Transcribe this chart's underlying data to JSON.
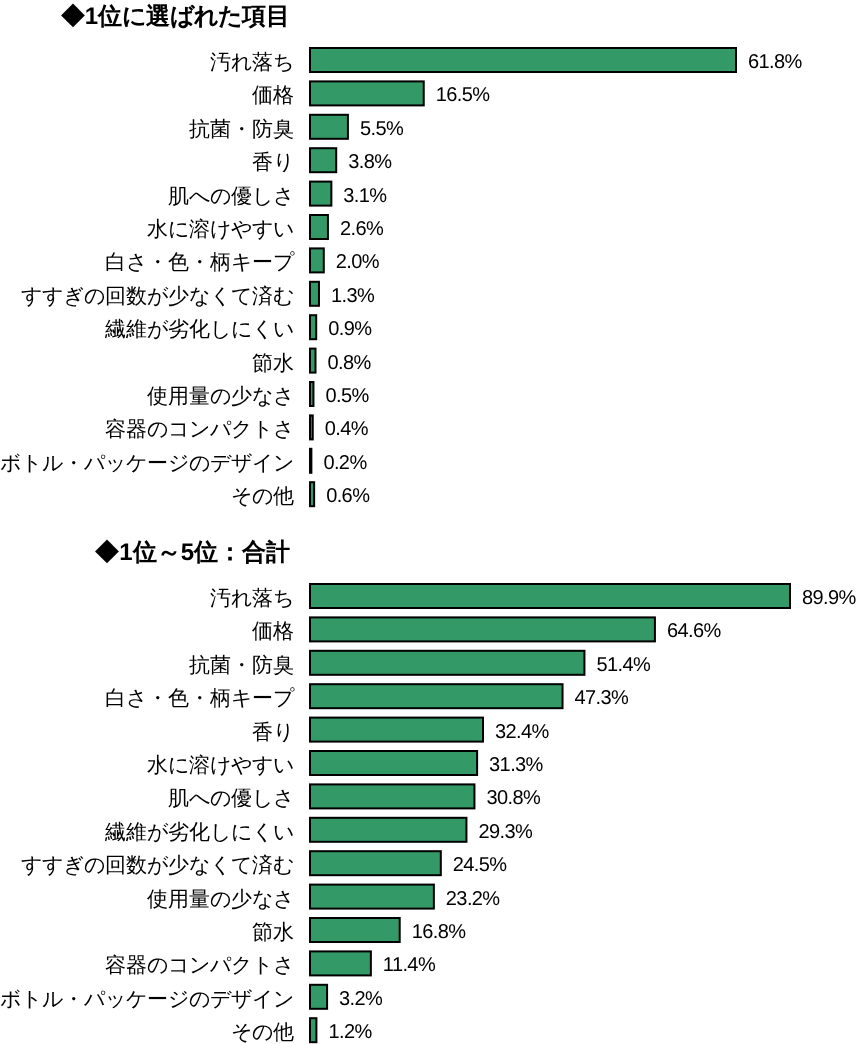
{
  "chart_data": [
    {
      "type": "bar",
      "orientation": "horizontal",
      "title": "◆1位に選ばれた項目",
      "color": "#339966",
      "categories": [
        "汚れ落ち",
        "価格",
        "抗菌・防臭",
        "香り",
        "肌への優しさ",
        "水に溶けやすい",
        "白さ・色・柄キープ",
        "すすぎの回数が少なくて済む",
        "繊維が劣化しにくい",
        "節水",
        "使用量の少なさ",
        "容器のコンパクトさ",
        "ボトル・パッケージのデザイン",
        "その他"
      ],
      "values": [
        61.8,
        16.5,
        5.5,
        3.8,
        3.1,
        2.6,
        2.0,
        1.3,
        0.9,
        0.8,
        0.5,
        0.4,
        0.2,
        0.6
      ],
      "value_labels": [
        "61.8%",
        "16.5%",
        "5.5%",
        "3.8%",
        "3.1%",
        "2.6%",
        "2.0%",
        "1.3%",
        "0.9%",
        "0.8%",
        "0.5%",
        "0.4%",
        "0.2%",
        "0.6%"
      ]
    },
    {
      "type": "bar",
      "orientation": "horizontal",
      "title": "◆1位～5位：合計",
      "color": "#339966",
      "categories": [
        "汚れ落ち",
        "価格",
        "抗菌・防臭",
        "白さ・色・柄キープ",
        "香り",
        "水に溶けやすい",
        "肌への優しさ",
        "繊維が劣化しにくい",
        "すすぎの回数が少なくて済む",
        "使用量の少なさ",
        "節水",
        "容器のコンパクトさ",
        "ボトル・パッケージのデザイン",
        "その他"
      ],
      "values": [
        89.9,
        64.6,
        51.4,
        47.3,
        32.4,
        31.3,
        30.8,
        29.3,
        24.5,
        23.2,
        16.8,
        11.4,
        3.2,
        1.2
      ],
      "value_labels": [
        "89.9%",
        "64.6%",
        "51.4%",
        "47.3%",
        "32.4%",
        "31.3%",
        "30.8%",
        "29.3%",
        "24.5%",
        "23.2%",
        "16.8%",
        "11.4%",
        "3.2%",
        "1.2%"
      ]
    }
  ]
}
